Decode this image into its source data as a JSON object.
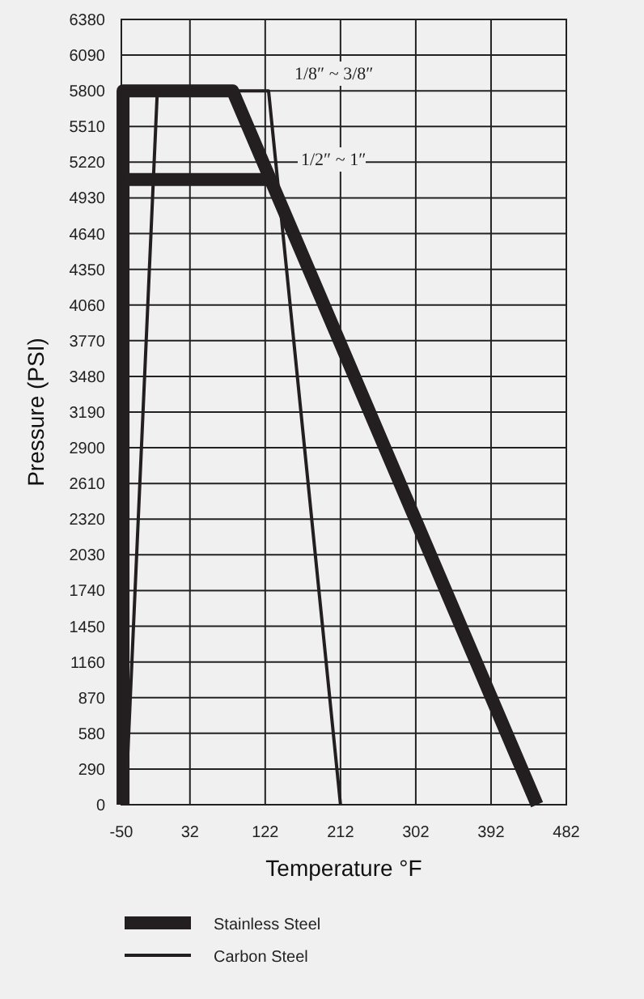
{
  "chart_data": {
    "type": "line",
    "xlabel": "Temperature °F",
    "ylabel": "Pressure (PSI)",
    "xlim": [
      -50,
      482
    ],
    "xticks": [
      -50,
      32,
      122,
      212,
      302,
      392,
      482
    ],
    "ylim": [
      0,
      6380
    ],
    "yticks": [
      0,
      290,
      580,
      870,
      1160,
      1450,
      1740,
      2030,
      2320,
      2610,
      2900,
      3190,
      3480,
      3770,
      4060,
      4350,
      4640,
      4930,
      5220,
      5510,
      5800,
      6090,
      6380
    ],
    "grid": true,
    "legend": "bottom",
    "marker": "none",
    "line_style": "solid",
    "series": [
      {
        "name": "Stainless Steel",
        "color": "#231f20",
        "x": [
          -48,
          -48,
          83,
          447
        ],
        "values": [
          0,
          5800,
          5800,
          0
        ]
      },
      {
        "name": "Carbon Steel",
        "color": "#231f20",
        "x": [
          -45,
          -7,
          126,
          212
        ],
        "values": [
          0,
          5800,
          5800,
          0
        ]
      },
      {
        "color": "#231f20",
        "x": [
          -48,
          128
        ],
        "values": [
          5080,
          5080
        ]
      }
    ],
    "annotations": [
      "1/8″ ~ 3/8″",
      "1/2″ ~ 1″"
    ]
  }
}
